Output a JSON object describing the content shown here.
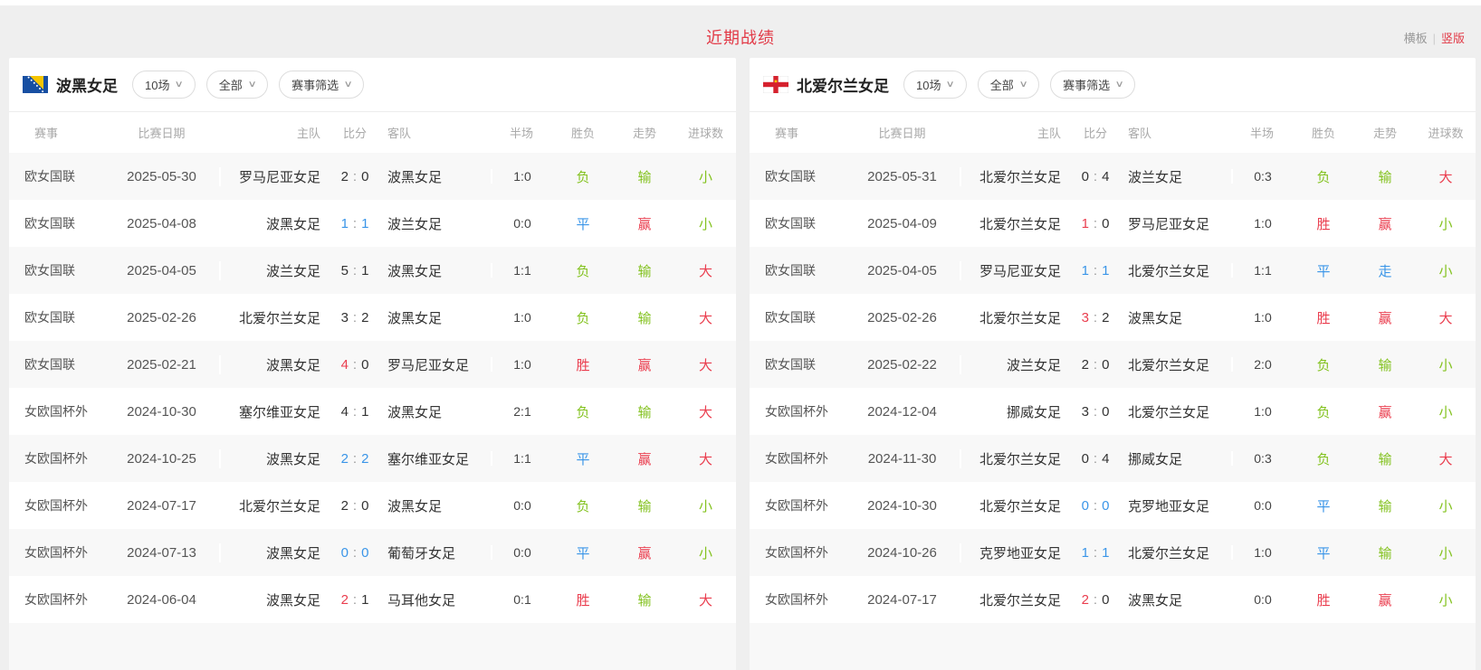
{
  "header": {
    "title": "近期战绩",
    "links": {
      "horizontal": "横板",
      "vertical": "竖版",
      "separator": "|"
    }
  },
  "colors": {
    "accent_red": "#e23946",
    "win_red": "#ea3d4e",
    "lose_green": "#83c21f",
    "draw_blue": "#3a95e8"
  },
  "icons": {
    "dropdown_chevron": "∨",
    "flags": [
      "bosnia-herzegovina-flag",
      "northern-ireland-flag"
    ]
  },
  "panels": [
    {
      "team": "波黑女足",
      "filters": {
        "count": "10场",
        "scope": "全部",
        "league": "赛事筛选"
      },
      "columns": [
        "赛事",
        "比赛日期",
        "主队",
        "比分",
        "客队",
        "半场",
        "胜负",
        "走势",
        "进球数"
      ],
      "partial_row": true,
      "rows": [
        {
          "league": "欧女国联",
          "date": "2025-05-30",
          "home": "罗马尼亚女足",
          "home_color": "dark",
          "hs": "2",
          "hs_color": "dark",
          "as": "0",
          "as_color": "dark",
          "away": "波黑女足",
          "half": "1:0",
          "result": "负",
          "result_color": "green",
          "trend": "输",
          "trend_color": "green",
          "goals": "小",
          "goals_color": "green"
        },
        {
          "league": "欧女国联",
          "date": "2025-04-08",
          "home": "波黑女足",
          "home_color": "dark",
          "hs": "1",
          "hs_color": "blue",
          "as": "1",
          "as_color": "blue",
          "away": "波兰女足",
          "half": "0:0",
          "result": "平",
          "result_color": "blue",
          "trend": "赢",
          "trend_color": "red",
          "goals": "小",
          "goals_color": "green"
        },
        {
          "league": "欧女国联",
          "date": "2025-04-05",
          "home": "波兰女足",
          "home_color": "dark",
          "hs": "5",
          "hs_color": "dark",
          "as": "1",
          "as_color": "dark",
          "away": "波黑女足",
          "half": "1:1",
          "result": "负",
          "result_color": "green",
          "trend": "输",
          "trend_color": "green",
          "goals": "大",
          "goals_color": "red"
        },
        {
          "league": "欧女国联",
          "date": "2025-02-26",
          "home": "北爱尔兰女足",
          "home_color": "dark",
          "hs": "3",
          "hs_color": "dark",
          "as": "2",
          "as_color": "dark",
          "away": "波黑女足",
          "half": "1:0",
          "result": "负",
          "result_color": "green",
          "trend": "输",
          "trend_color": "green",
          "goals": "大",
          "goals_color": "red"
        },
        {
          "league": "欧女国联",
          "date": "2025-02-21",
          "home": "波黑女足",
          "home_color": "red",
          "hs": "4",
          "hs_color": "red",
          "as": "0",
          "as_color": "dark",
          "away": "罗马尼亚女足",
          "half": "1:0",
          "result": "胜",
          "result_color": "red",
          "trend": "赢",
          "trend_color": "red",
          "goals": "大",
          "goals_color": "red"
        },
        {
          "league": "女欧国杯外",
          "date": "2024-10-30",
          "home": "塞尔维亚女足",
          "home_color": "dark",
          "hs": "4",
          "hs_color": "dark",
          "as": "1",
          "as_color": "dark",
          "away": "波黑女足",
          "half": "2:1",
          "result": "负",
          "result_color": "green",
          "trend": "输",
          "trend_color": "green",
          "goals": "大",
          "goals_color": "red"
        },
        {
          "league": "女欧国杯外",
          "date": "2024-10-25",
          "home": "波黑女足",
          "home_color": "dark",
          "hs": "2",
          "hs_color": "blue",
          "as": "2",
          "as_color": "blue",
          "away": "塞尔维亚女足",
          "half": "1:1",
          "result": "平",
          "result_color": "blue",
          "trend": "赢",
          "trend_color": "red",
          "goals": "大",
          "goals_color": "red"
        },
        {
          "league": "女欧国杯外",
          "date": "2024-07-17",
          "home": "北爱尔兰女足",
          "home_color": "dark",
          "hs": "2",
          "hs_color": "dark",
          "as": "0",
          "as_color": "dark",
          "away": "波黑女足",
          "half": "0:0",
          "result": "负",
          "result_color": "green",
          "trend": "输",
          "trend_color": "green",
          "goals": "小",
          "goals_color": "green"
        },
        {
          "league": "女欧国杯外",
          "date": "2024-07-13",
          "home": "波黑女足",
          "home_color": "dark",
          "hs": "0",
          "hs_color": "blue",
          "as": "0",
          "as_color": "blue",
          "away": "葡萄牙女足",
          "half": "0:0",
          "result": "平",
          "result_color": "blue",
          "trend": "赢",
          "trend_color": "red",
          "goals": "小",
          "goals_color": "green"
        },
        {
          "league": "女欧国杯外",
          "date": "2024-06-04",
          "home": "波黑女足",
          "home_color": "red",
          "hs": "2",
          "hs_color": "red",
          "as": "1",
          "as_color": "dark",
          "away": "马耳他女足",
          "half": "0:1",
          "result": "胜",
          "result_color": "red",
          "trend": "输",
          "trend_color": "green",
          "goals": "大",
          "goals_color": "red"
        }
      ]
    },
    {
      "team": "北爱尔兰女足",
      "filters": {
        "count": "10场",
        "scope": "全部",
        "league": "赛事筛选"
      },
      "columns": [
        "赛事",
        "比赛日期",
        "主队",
        "比分",
        "客队",
        "半场",
        "胜负",
        "走势",
        "进球数"
      ],
      "partial_row": true,
      "rows": [
        {
          "league": "欧女国联",
          "date": "2025-05-31",
          "home": "北爱尔兰女足",
          "home_color": "dark",
          "hs": "0",
          "hs_color": "dark",
          "as": "4",
          "as_color": "dark",
          "away": "波兰女足",
          "half": "0:3",
          "result": "负",
          "result_color": "green",
          "trend": "输",
          "trend_color": "green",
          "goals": "大",
          "goals_color": "red"
        },
        {
          "league": "欧女国联",
          "date": "2025-04-09",
          "home": "北爱尔兰女足",
          "home_color": "red",
          "hs": "1",
          "hs_color": "red",
          "as": "0",
          "as_color": "dark",
          "away": "罗马尼亚女足",
          "half": "1:0",
          "result": "胜",
          "result_color": "red",
          "trend": "赢",
          "trend_color": "red",
          "goals": "小",
          "goals_color": "green"
        },
        {
          "league": "欧女国联",
          "date": "2025-04-05",
          "home": "罗马尼亚女足",
          "home_color": "dark",
          "hs": "1",
          "hs_color": "blue",
          "as": "1",
          "as_color": "blue",
          "away": "北爱尔兰女足",
          "half": "1:1",
          "result": "平",
          "result_color": "blue",
          "trend": "走",
          "trend_color": "blue",
          "goals": "小",
          "goals_color": "green"
        },
        {
          "league": "欧女国联",
          "date": "2025-02-26",
          "home": "北爱尔兰女足",
          "home_color": "red",
          "hs": "3",
          "hs_color": "red",
          "as": "2",
          "as_color": "dark",
          "away": "波黑女足",
          "half": "1:0",
          "result": "胜",
          "result_color": "red",
          "trend": "赢",
          "trend_color": "red",
          "goals": "大",
          "goals_color": "red"
        },
        {
          "league": "欧女国联",
          "date": "2025-02-22",
          "home": "波兰女足",
          "home_color": "dark",
          "hs": "2",
          "hs_color": "dark",
          "as": "0",
          "as_color": "dark",
          "away": "北爱尔兰女足",
          "half": "2:0",
          "result": "负",
          "result_color": "green",
          "trend": "输",
          "trend_color": "green",
          "goals": "小",
          "goals_color": "green"
        },
        {
          "league": "女欧国杯外",
          "date": "2024-12-04",
          "home": "挪威女足",
          "home_color": "dark",
          "hs": "3",
          "hs_color": "dark",
          "as": "0",
          "as_color": "dark",
          "away": "北爱尔兰女足",
          "half": "1:0",
          "result": "负",
          "result_color": "green",
          "trend": "赢",
          "trend_color": "red",
          "goals": "小",
          "goals_color": "green"
        },
        {
          "league": "女欧国杯外",
          "date": "2024-11-30",
          "home": "北爱尔兰女足",
          "home_color": "dark",
          "hs": "0",
          "hs_color": "dark",
          "as": "4",
          "as_color": "dark",
          "away": "挪威女足",
          "half": "0:3",
          "result": "负",
          "result_color": "green",
          "trend": "输",
          "trend_color": "green",
          "goals": "大",
          "goals_color": "red"
        },
        {
          "league": "女欧国杯外",
          "date": "2024-10-30",
          "home": "北爱尔兰女足",
          "home_color": "dark",
          "hs": "0",
          "hs_color": "blue",
          "as": "0",
          "as_color": "blue",
          "away": "克罗地亚女足",
          "half": "0:0",
          "result": "平",
          "result_color": "blue",
          "trend": "输",
          "trend_color": "green",
          "goals": "小",
          "goals_color": "green"
        },
        {
          "league": "女欧国杯外",
          "date": "2024-10-26",
          "home": "克罗地亚女足",
          "home_color": "dark",
          "hs": "1",
          "hs_color": "blue",
          "as": "1",
          "as_color": "blue",
          "away": "北爱尔兰女足",
          "half": "1:0",
          "result": "平",
          "result_color": "blue",
          "trend": "输",
          "trend_color": "green",
          "goals": "小",
          "goals_color": "green"
        },
        {
          "league": "女欧国杯外",
          "date": "2024-07-17",
          "home": "北爱尔兰女足",
          "home_color": "red",
          "hs": "2",
          "hs_color": "red",
          "as": "0",
          "as_color": "dark",
          "away": "波黑女足",
          "half": "0:0",
          "result": "胜",
          "result_color": "red",
          "trend": "赢",
          "trend_color": "red",
          "goals": "小",
          "goals_color": "green"
        }
      ]
    }
  ]
}
